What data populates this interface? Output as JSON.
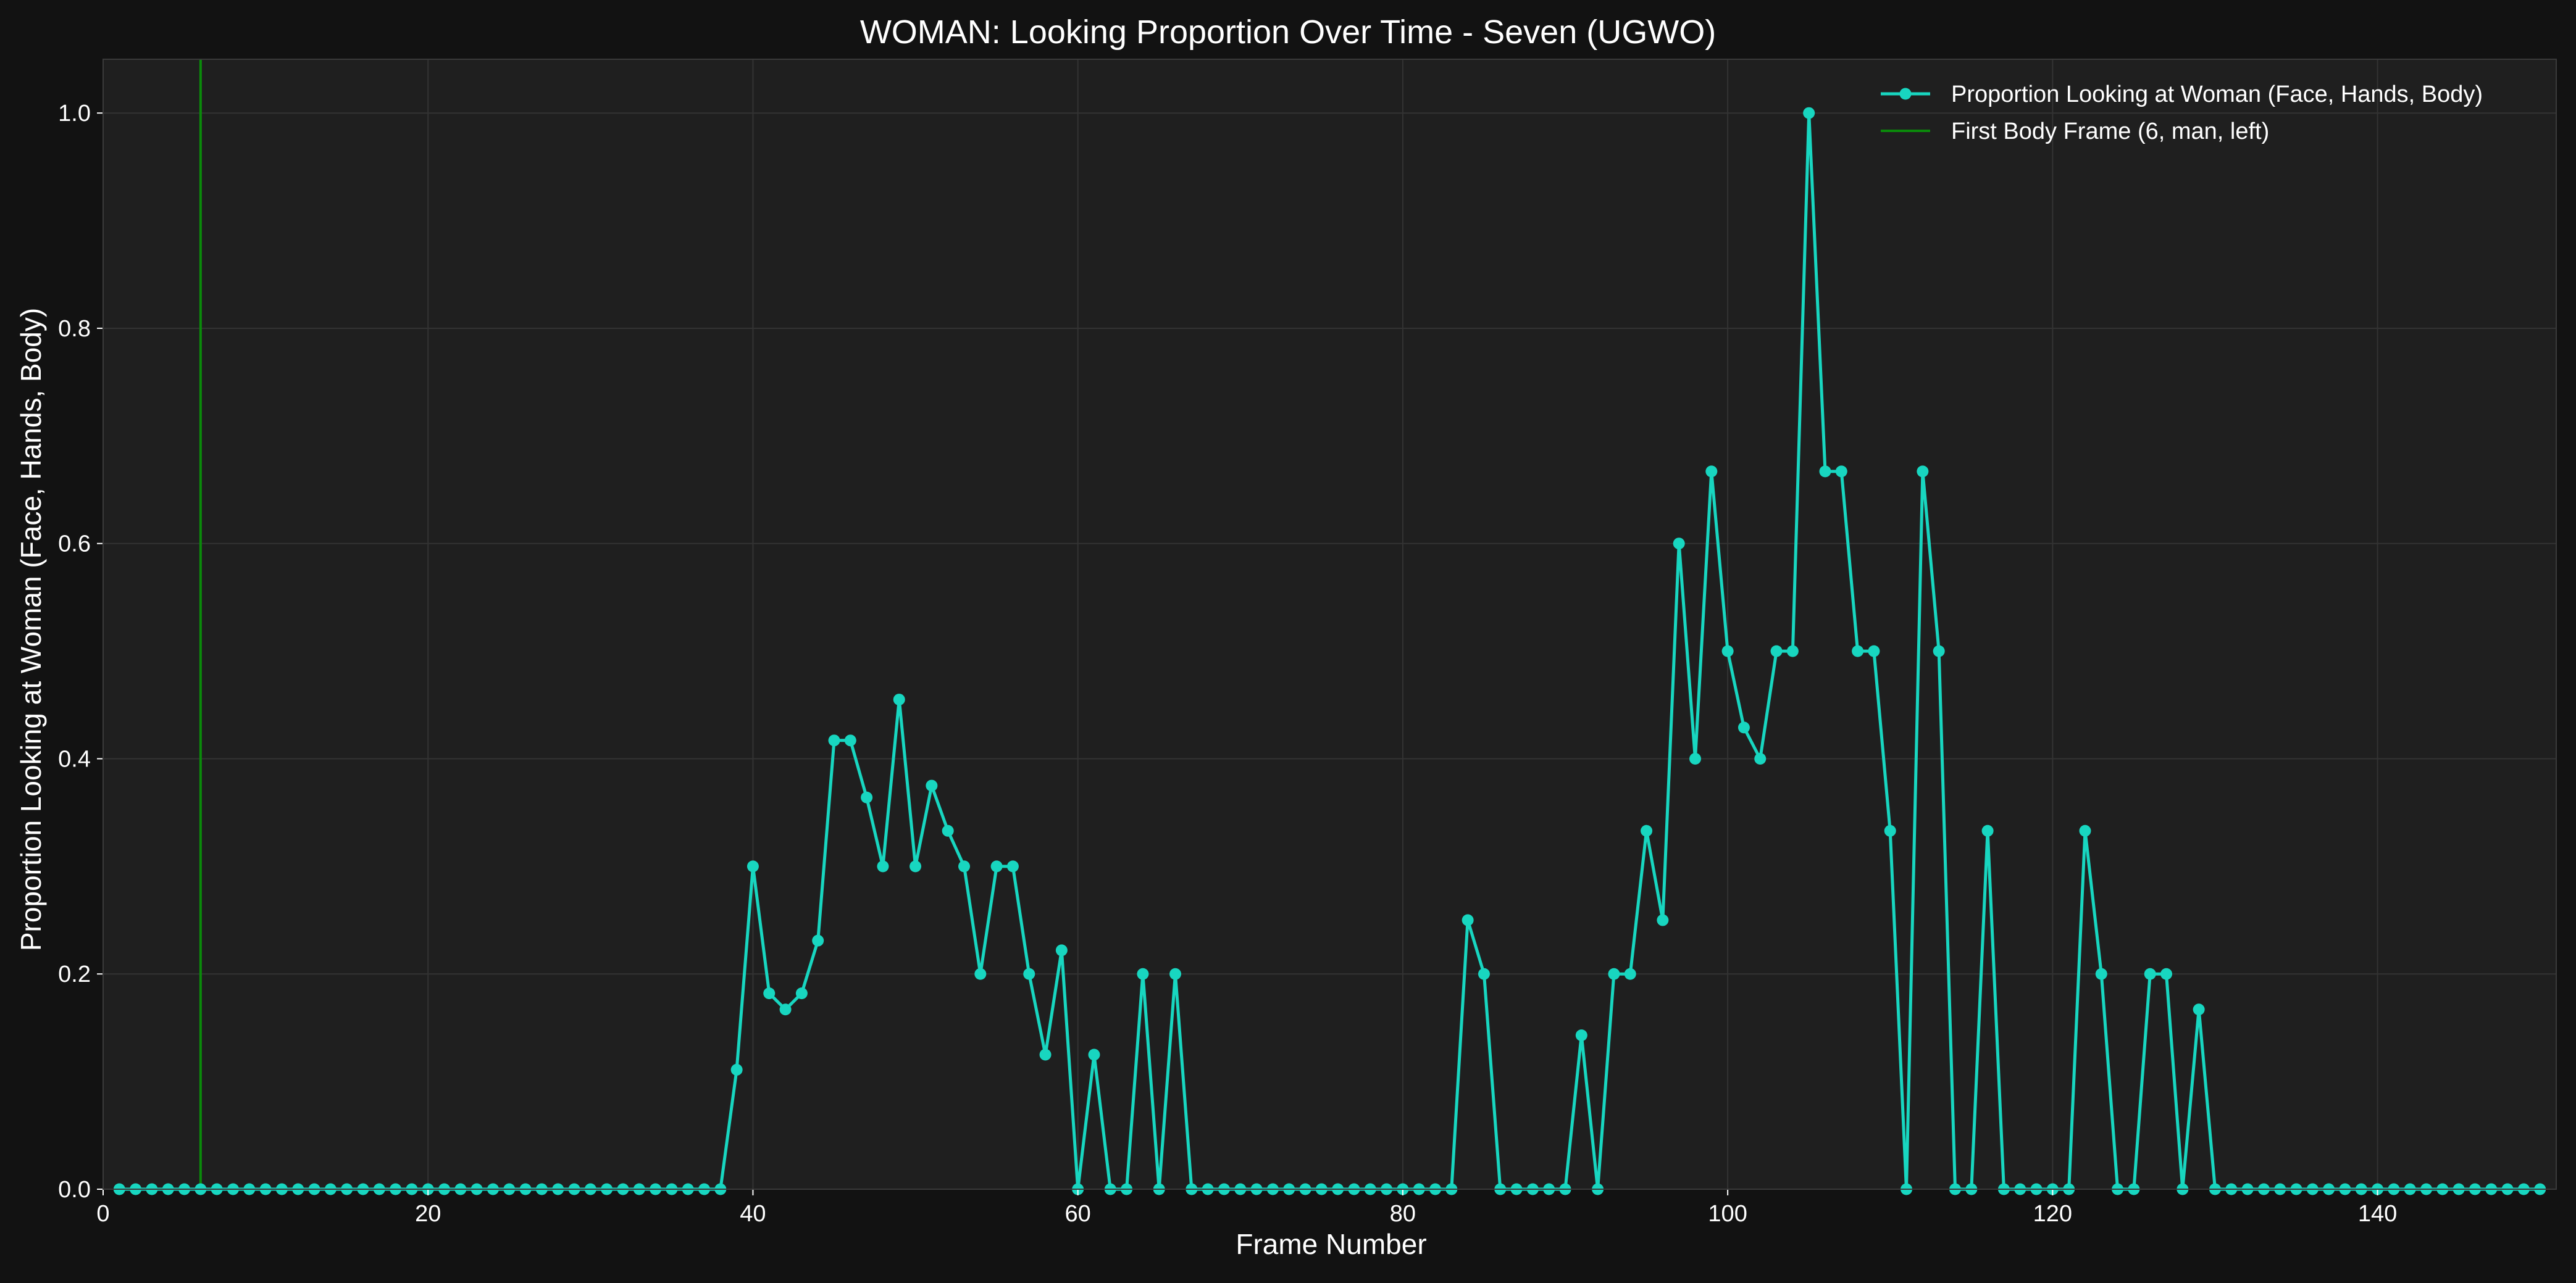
{
  "chart_data": {
    "type": "line",
    "title": "WOMAN: Looking Proportion Over Time - Seven (UGWO)",
    "xlabel": "Frame Number",
    "ylabel": "Proportion Looking at Woman (Face, Hands, Body)",
    "xlim": [
      0,
      151
    ],
    "ylim": [
      0,
      1.05
    ],
    "xticks": [
      0,
      20,
      40,
      60,
      80,
      100,
      120,
      140
    ],
    "yticks": [
      0.0,
      0.2,
      0.4,
      0.6,
      0.8,
      1.0
    ],
    "xtick_labels": [
      "0",
      "20",
      "40",
      "60",
      "80",
      "100",
      "120",
      "140"
    ],
    "ytick_labels": [
      "0.0",
      "0.2",
      "0.4",
      "0.6",
      "0.8",
      "1.0"
    ],
    "grid": true,
    "legend_position": "top-right",
    "background_color": "#1f1f1f",
    "page_background_color": "#121212",
    "series": [
      {
        "name": "Proportion Looking at Woman (Face, Hands, Body)",
        "color": "#18d6c0",
        "marker": "circle",
        "x": [
          1,
          2,
          3,
          4,
          5,
          6,
          7,
          8,
          9,
          10,
          11,
          12,
          13,
          14,
          15,
          16,
          17,
          18,
          19,
          20,
          21,
          22,
          23,
          24,
          25,
          26,
          27,
          28,
          29,
          30,
          31,
          32,
          33,
          34,
          35,
          36,
          37,
          38,
          39,
          40,
          41,
          42,
          43,
          44,
          45,
          46,
          47,
          48,
          49,
          50,
          51,
          52,
          53,
          54,
          55,
          56,
          57,
          58,
          59,
          60,
          61,
          62,
          63,
          64,
          65,
          66,
          67,
          68,
          69,
          70,
          71,
          72,
          73,
          74,
          75,
          76,
          77,
          78,
          79,
          80,
          81,
          82,
          83,
          84,
          85,
          86,
          87,
          88,
          89,
          90,
          91,
          92,
          93,
          94,
          95,
          96,
          97,
          98,
          99,
          100,
          101,
          102,
          103,
          104,
          105,
          106,
          107,
          108,
          109,
          110,
          111,
          112,
          113,
          114,
          115,
          116,
          117,
          118,
          119,
          120,
          121,
          122,
          123,
          124,
          125,
          126,
          127,
          128,
          129,
          130,
          131,
          132,
          133,
          134,
          135,
          136,
          137,
          138,
          139,
          140,
          141,
          142,
          143,
          144,
          145,
          146,
          147,
          148,
          149,
          150
        ],
        "values": [
          0,
          0,
          0,
          0,
          0,
          0,
          0,
          0,
          0,
          0,
          0,
          0,
          0,
          0,
          0,
          0,
          0,
          0,
          0,
          0,
          0,
          0,
          0,
          0,
          0,
          0,
          0,
          0,
          0,
          0,
          0,
          0,
          0,
          0,
          0,
          0,
          0,
          0,
          0.111,
          0.3,
          0.182,
          0.167,
          0.182,
          0.231,
          0.417,
          0.417,
          0.364,
          0.3,
          0.455,
          0.3,
          0.375,
          0.333,
          0.3,
          0.2,
          0.3,
          0.3,
          0.2,
          0.125,
          0.222,
          0,
          0.125,
          0,
          0,
          0.2,
          0,
          0.2,
          0,
          0,
          0,
          0,
          0,
          0,
          0,
          0,
          0,
          0,
          0,
          0,
          0,
          0,
          0,
          0,
          0,
          0.25,
          0.2,
          0,
          0,
          0,
          0,
          0,
          0.143,
          0,
          0.2,
          0.2,
          0.333,
          0.25,
          0.6,
          0.4,
          0.667,
          0.5,
          0.429,
          0.4,
          0.5,
          0.5,
          1.0,
          0.667,
          0.667,
          0.5,
          0.5,
          0.333,
          0,
          0.667,
          0.5,
          0,
          0,
          0.333,
          0,
          0,
          0,
          0,
          0,
          0.333,
          0.2,
          0,
          0,
          0.2,
          0.2,
          0,
          0.167,
          0,
          0,
          0,
          0,
          0,
          0,
          0,
          0,
          0,
          0,
          0,
          0,
          0,
          0,
          0,
          0,
          0,
          0,
          0,
          0,
          0
        ]
      }
    ],
    "vlines": [
      {
        "name": "First Body Frame (6, man, left)",
        "x": 6,
        "color": "#0a8a0a"
      }
    ]
  }
}
